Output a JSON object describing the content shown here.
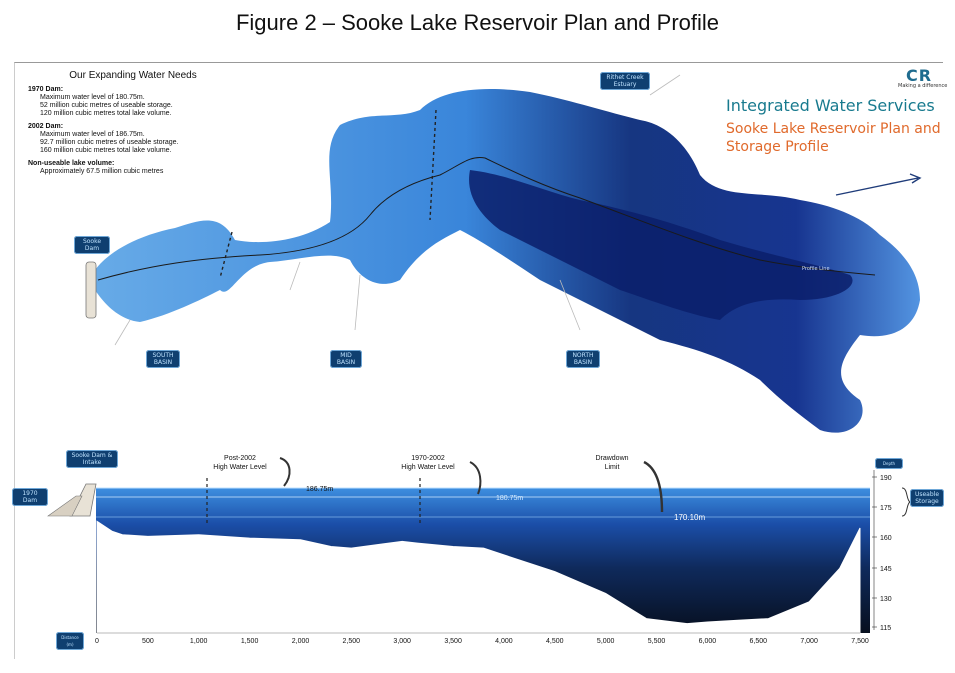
{
  "figure_title": "Figure 2 – Sooke Lake Reservoir Plan and Profile",
  "logo": {
    "mark": "CR",
    "tagline": "Making a difference"
  },
  "header": {
    "title": "Integrated Water Services",
    "subtitle": "Sooke Lake Reservoir Plan and Storage Profile"
  },
  "needs": {
    "title": "Our Expanding Water Needs",
    "dam1970": {
      "head": "1970 Dam:",
      "lines": [
        "Maximum water level of 180.75m.",
        "52 million cubic metres of useable storage.",
        "120 million cubic metres total lake volume."
      ]
    },
    "dam2002": {
      "head": "2002 Dam:",
      "lines": [
        "Maximum water level of 186.75m.",
        "92.7 million cubic metres of useable storage.",
        "160 million cubic metres total lake volume."
      ]
    },
    "nonuse": {
      "head": "Non-useable lake volume:",
      "line": "Approximately 67.5 million cubic metres"
    }
  },
  "plan_labels": {
    "rithet": "Rithet Creek Estuary",
    "sooke_dam": "Sooke Dam",
    "south": "SOUTH BASIN",
    "mid": "MID BASIN",
    "north": "NORTH BASIN",
    "profile_line": "Profile Line"
  },
  "profile_labels": {
    "dam_intake": "Sooke Dam & Intake",
    "dam1970": "1970 Dam",
    "post2002": "Post-2002 High Water Level",
    "hwl1970": "1970-2002 High Water Level",
    "drawdown": "Drawdown Limit",
    "lvl_186": "186.75m",
    "lvl_180": "180.75m",
    "lvl_170": "170.10m",
    "useable": "Useable Storage",
    "depth_hdr": "Depth",
    "dist_hdr": "Distance (m)"
  },
  "chart_data": {
    "type": "area",
    "x_ticks": [
      "0",
      "500",
      "1,000",
      "1,500",
      "2,000",
      "2,500",
      "3,000",
      "3,500",
      "4,000",
      "4,500",
      "5,000",
      "5,500",
      "6,000",
      "6,500",
      "7,000",
      "7,500"
    ],
    "y_ticks": [
      "190",
      "175",
      "160",
      "145",
      "130",
      "115"
    ],
    "xlim": [
      0,
      7500
    ],
    "ylim": [
      115,
      190
    ],
    "levels": [
      186.75,
      180.75,
      170.1
    ],
    "x": [
      0,
      150,
      250,
      500,
      1000,
      1500,
      2000,
      2300,
      2500,
      3000,
      3150,
      3500,
      3800,
      4000,
      4500,
      5000,
      5400,
      5800,
      6000,
      6300,
      6600,
      7000,
      7300,
      7500
    ],
    "bottom": [
      178,
      172,
      170,
      169,
      170,
      168,
      167,
      163,
      162,
      166,
      165,
      163,
      162,
      158,
      148,
      135,
      120,
      117,
      118,
      119,
      120,
      130,
      150,
      174
    ],
    "colors": {
      "water_top": "#5ea8e8",
      "water_deep": "#0a1a33",
      "land": "#ffffff"
    }
  }
}
